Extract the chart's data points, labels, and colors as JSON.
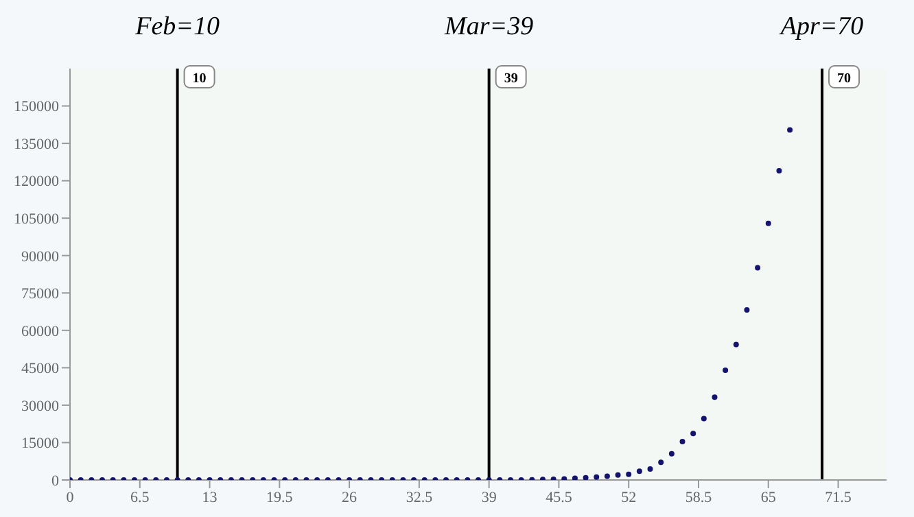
{
  "chart_data": {
    "type": "scatter",
    "x": [
      0,
      1,
      2,
      3,
      4,
      5,
      6,
      7,
      8,
      9,
      10,
      11,
      12,
      13,
      14,
      15,
      16,
      17,
      18,
      19,
      20,
      21,
      22,
      23,
      24,
      25,
      26,
      27,
      28,
      29,
      30,
      31,
      32,
      33,
      34,
      35,
      36,
      37,
      38,
      39,
      40,
      41,
      42,
      43,
      44,
      45,
      46,
      47,
      48,
      49,
      50,
      51,
      52,
      53,
      54,
      55,
      56,
      57,
      58,
      59,
      60,
      61,
      62,
      63,
      64,
      65,
      66,
      67
    ],
    "values": [
      0,
      0,
      0,
      0,
      0,
      0,
      0,
      0,
      0,
      0,
      0,
      0,
      0,
      0,
      0,
      0,
      0,
      0,
      0,
      0,
      0,
      0,
      0,
      0,
      0,
      0,
      0,
      0,
      0,
      0,
      0,
      0,
      0,
      0,
      0,
      0,
      0,
      0,
      0,
      0,
      0,
      0,
      0,
      100,
      200,
      300,
      400,
      700,
      900,
      1200,
      1500,
      2000,
      2300,
      3500,
      4400,
      7100,
      10500,
      15400,
      18600,
      24600,
      33200,
      44000,
      54300,
      68200,
      85100,
      102900,
      124000,
      140400
    ],
    "color": "#14146e",
    "marker": "circle",
    "grid": false,
    "xlim": [
      0,
      76
    ],
    "xticks": [
      0,
      6.5,
      13,
      19.5,
      26,
      32.5,
      39,
      45.5,
      52,
      58.5,
      65,
      71.5
    ],
    "ylim": [
      0,
      165000
    ],
    "yticks": [
      0,
      15000,
      30000,
      45000,
      60000,
      75000,
      90000,
      105000,
      120000,
      135000,
      150000
    ],
    "ref_lines": [
      {
        "axis": "x",
        "value": 10,
        "label": "10",
        "color": "#000000"
      },
      {
        "axis": "x",
        "value": 39,
        "label": "39",
        "color": "#000000"
      },
      {
        "axis": "x",
        "value": 70,
        "label": "70",
        "color": "#000000"
      }
    ],
    "annotations": [
      "Feb=10",
      "Mar=39",
      "Apr=70"
    ]
  }
}
